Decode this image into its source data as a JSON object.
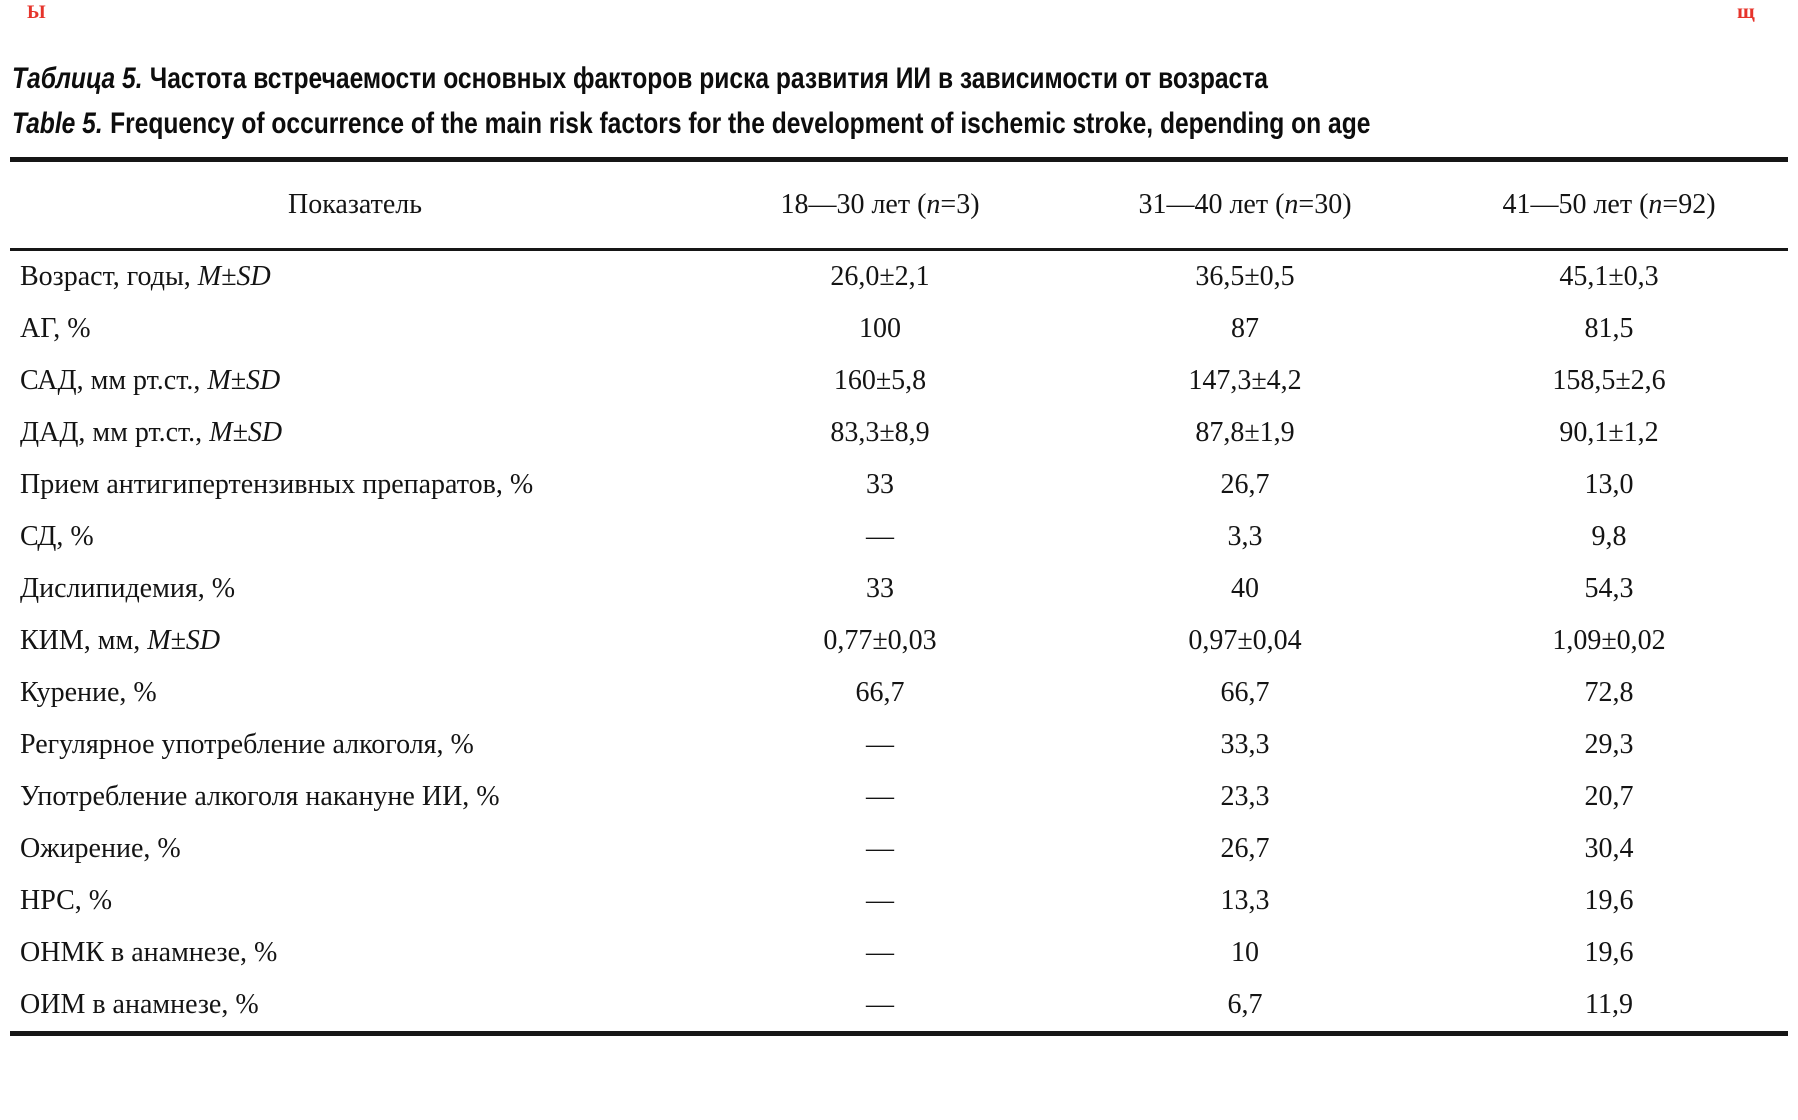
{
  "colors": {
    "text": "#141414",
    "rule": "#161616",
    "stray_mark": "#e6342b"
  },
  "decorations": {
    "top_left_mark": "Ы",
    "top_right_mark": "щ"
  },
  "title": {
    "ru_label": "Таблица 5.",
    "ru_text": "Частота встречаемости основных факторов риска развития ИИ в зависимости от возраста",
    "en_label": "Table 5.",
    "en_text": "Frequency of occurrence of the main risk factors for the development of ischemic stroke, depending on age"
  },
  "table": {
    "indicator_header": "Показатель",
    "headers": [
      {
        "pre": "18—30 лет (",
        "n": "n",
        "post": "=3)"
      },
      {
        "pre": "31—40 лет (",
        "n": "n",
        "post": "=30)"
      },
      {
        "pre": "41—50 лет (",
        "n": "n",
        "post": "=92)"
      }
    ],
    "rows": [
      {
        "label": "Возраст, годы, ",
        "italic": "M±SD",
        "values": [
          "26,0±2,1",
          "36,5±0,5",
          "45,1±0,3"
        ]
      },
      {
        "label": "АГ, %",
        "italic": "",
        "values": [
          "100",
          "87",
          "81,5"
        ]
      },
      {
        "label": "САД, мм рт.ст., ",
        "italic": "M±SD",
        "values": [
          "160±5,8",
          "147,3±4,2",
          "158,5±2,6"
        ]
      },
      {
        "label": "ДАД, мм рт.ст., ",
        "italic": "M±SD",
        "values": [
          "83,3±8,9",
          "87,8±1,9",
          "90,1±1,2"
        ]
      },
      {
        "label": "Прием антигипертензивных препаратов, %",
        "italic": "",
        "values": [
          "33",
          "26,7",
          "13,0"
        ]
      },
      {
        "label": "СД, %",
        "italic": "",
        "values": [
          "—",
          "3,3",
          "9,8"
        ]
      },
      {
        "label": "Дислипидемия, %",
        "italic": "",
        "values": [
          "33",
          "40",
          "54,3"
        ]
      },
      {
        "label": "КИМ, мм, ",
        "italic": "M±SD",
        "values": [
          "0,77±0,03",
          "0,97±0,04",
          "1,09±0,02"
        ]
      },
      {
        "label": "Курение, %",
        "italic": "",
        "values": [
          "66,7",
          "66,7",
          "72,8"
        ]
      },
      {
        "label": "Регулярное употребление алкоголя, %",
        "italic": "",
        "values": [
          "—",
          "33,3",
          "29,3"
        ]
      },
      {
        "label": "Употребление алкоголя накануне ИИ, %",
        "italic": "",
        "values": [
          "—",
          "23,3",
          "20,7"
        ]
      },
      {
        "label": "Ожирение, %",
        "italic": "",
        "values": [
          "—",
          "26,7",
          "30,4"
        ]
      },
      {
        "label": "НРС, %",
        "italic": "",
        "values": [
          "—",
          "13,3",
          "19,6"
        ]
      },
      {
        "label": "ОНМК в анамнезе, %",
        "italic": "",
        "values": [
          "—",
          "10",
          "19,6"
        ]
      },
      {
        "label": "ОИМ в анамнезе, %",
        "italic": "",
        "values": [
          "—",
          "6,7",
          "11,9"
        ]
      }
    ]
  }
}
